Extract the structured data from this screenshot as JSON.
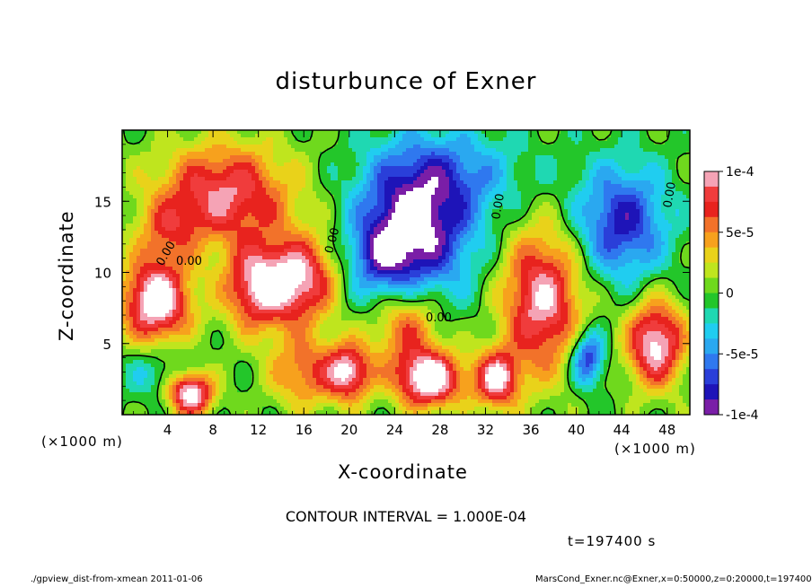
{
  "chart_data": {
    "type": "heatmap",
    "title": "disturbunce of Exner",
    "xlabel": "X-coordinate",
    "ylabel": "Z-coordinate",
    "x_unit": "(×1000 m)",
    "y_unit": "(×1000 m)",
    "xlim": [
      0,
      50
    ],
    "ylim": [
      0,
      20
    ],
    "x_ticks": [
      4,
      8,
      12,
      16,
      20,
      24,
      28,
      32,
      36,
      40,
      44,
      48
    ],
    "y_ticks": [
      5,
      10,
      15
    ],
    "colorbar": {
      "ticks": [
        "1e-4",
        "5e-5",
        "0",
        "-5e-5",
        "-1e-4"
      ],
      "range": [
        -0.0001,
        0.0001
      ],
      "colors": [
        "#f5a3b5",
        "#f03c3c",
        "#e8231e",
        "#f2722a",
        "#f7a11d",
        "#e9d21a",
        "#bfe51e",
        "#6fd91d",
        "#23c62a",
        "#1fd8b2",
        "#20cdf0",
        "#2aa8f0",
        "#2f78ef",
        "#2a3fd9",
        "#1e14b8",
        "#7a1ea7"
      ]
    },
    "contour_labels": [
      "0.00",
      "0.00",
      "0.00",
      "0.00",
      "0.00",
      "0.00"
    ],
    "field_blobs": [
      {
        "x": 9,
        "z": 15.5,
        "sx": 6,
        "sz": 3.5,
        "amp": 9e-05
      },
      {
        "x": 4,
        "z": 13,
        "sx": 2.5,
        "sz": 2,
        "amp": 4e-05
      },
      {
        "x": 12,
        "z": 9,
        "sx": 3,
        "sz": 3,
        "amp": 0.0001
      },
      {
        "x": 16,
        "z": 9.5,
        "sx": 3,
        "sz": 3,
        "amp": 9e-05
      },
      {
        "x": 37,
        "z": 8,
        "sx": 3.5,
        "sz": 5,
        "amp": 0.0001
      },
      {
        "x": 25,
        "z": 6.5,
        "sx": 3,
        "sz": 3,
        "amp": 7e-05
      },
      {
        "x": 26,
        "z": 13,
        "sx": 5,
        "sz": 5,
        "amp": -0.0001
      },
      {
        "x": 23,
        "z": 11,
        "sx": 3,
        "sz": 3,
        "amp": -5e-05
      },
      {
        "x": 44,
        "z": 13.5,
        "sx": 4,
        "sz": 4,
        "amp": -8e-05
      },
      {
        "x": 29,
        "z": 17,
        "sx": 7,
        "sz": 3,
        "amp": -4e-05
      },
      {
        "x": 3,
        "z": 8,
        "sx": 3,
        "sz": 3,
        "amp": 0.00012
      },
      {
        "x": 3,
        "z": 3,
        "sx": 3,
        "sz": 2,
        "amp": -3e-05
      },
      {
        "x": 20,
        "z": 3,
        "sx": 2,
        "sz": 2,
        "amp": 0.0001
      },
      {
        "x": 27,
        "z": 2.5,
        "sx": 3,
        "sz": 2,
        "amp": 0.00012
      },
      {
        "x": 33,
        "z": 2.5,
        "sx": 2,
        "sz": 2,
        "amp": 0.0001
      },
      {
        "x": 47,
        "z": 5,
        "sx": 2.5,
        "sz": 3,
        "amp": 0.00011
      },
      {
        "x": 41,
        "z": 4,
        "sx": 1.5,
        "sz": 2,
        "amp": -8e-05
      },
      {
        "x": 6,
        "z": 1.5,
        "sx": 2,
        "sz": 1.5,
        "amp": 0.00012
      },
      {
        "x": 16,
        "z": 3,
        "sx": 3,
        "sz": 2.5,
        "amp": 6e-05
      }
    ]
  },
  "contour_interval": "CONTOUR INTERVAL = 1.000E-04",
  "time_label": "t=197400  s",
  "footer_left": "./gpview_dist-from-xmean   2011-01-06",
  "footer_right": "MarsCond_Exner.nc@Exner,x=0:50000,z=0:20000,t=197400"
}
